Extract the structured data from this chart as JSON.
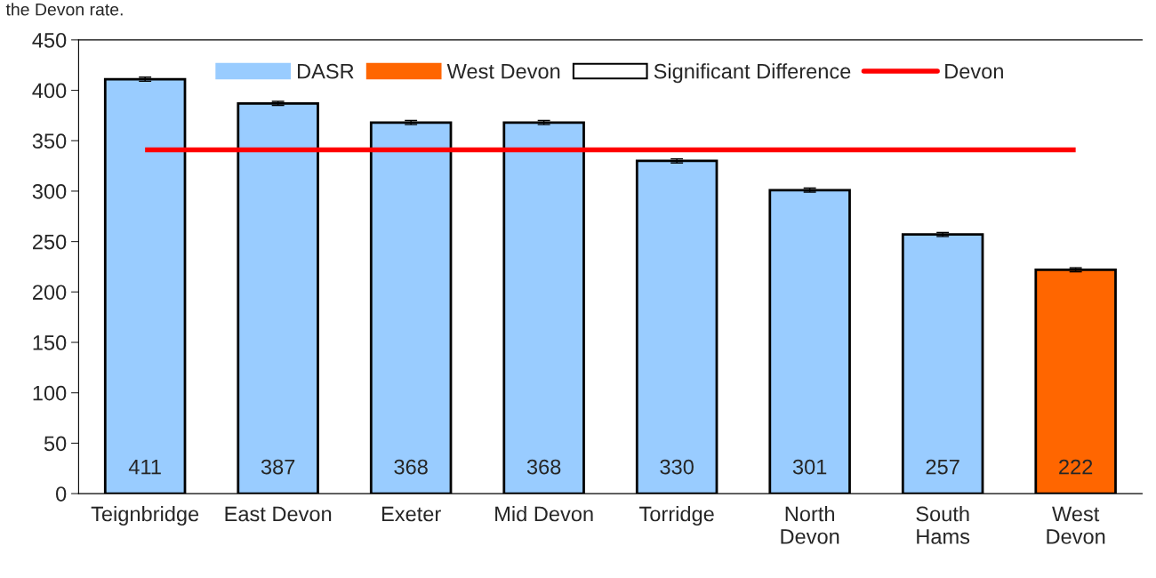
{
  "chart_data": {
    "type": "bar",
    "categories": [
      "Teignbridge",
      "East Devon",
      "Exeter",
      "Mid Devon",
      "Torridge",
      "North\nDevon",
      "South\nHams",
      "West\nDevon"
    ],
    "series": [
      {
        "name": "DASR",
        "color": "#99ccff",
        "values": [
          411,
          387,
          368,
          368,
          330,
          301,
          257,
          null
        ],
        "errors": [
          2,
          2,
          2,
          2,
          2,
          2,
          2,
          null
        ]
      },
      {
        "name": "West Devon",
        "color": "#ff6600",
        "values": [
          null,
          null,
          null,
          null,
          null,
          null,
          null,
          222
        ],
        "errors": [
          null,
          null,
          null,
          null,
          null,
          null,
          null,
          2
        ]
      },
      {
        "name": "Significant Difference",
        "color": "#ffffff",
        "values": [
          null,
          null,
          null,
          null,
          null,
          null,
          null,
          null
        ]
      }
    ],
    "ref_lines": [
      {
        "axis": "y",
        "value": 341,
        "label": "Devon",
        "color": "#ff0000"
      }
    ],
    "data_labels": true,
    "ylim": [
      0,
      450
    ],
    "yticks": [
      0,
      50,
      100,
      150,
      200,
      250,
      300,
      350,
      400,
      450
    ],
    "grid": false,
    "legend": "top",
    "annotations": [
      "the Devon rate."
    ]
  }
}
